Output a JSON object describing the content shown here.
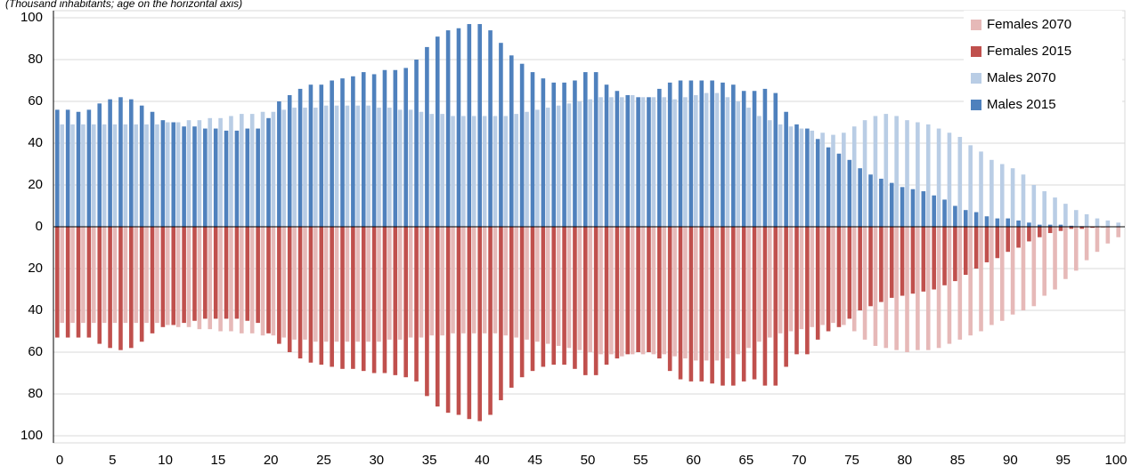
{
  "chart_data": {
    "type": "bar",
    "title": "(Thousand inhabitants; age on the horizontal axis)",
    "x": [
      0,
      1,
      2,
      3,
      4,
      5,
      6,
      7,
      8,
      9,
      10,
      11,
      12,
      13,
      14,
      15,
      16,
      17,
      18,
      19,
      20,
      21,
      22,
      23,
      24,
      25,
      26,
      27,
      28,
      29,
      30,
      31,
      32,
      33,
      34,
      35,
      36,
      37,
      38,
      39,
      40,
      41,
      42,
      43,
      44,
      45,
      46,
      47,
      48,
      49,
      50,
      51,
      52,
      53,
      54,
      55,
      56,
      57,
      58,
      59,
      60,
      61,
      62,
      63,
      64,
      65,
      66,
      67,
      68,
      69,
      70,
      71,
      72,
      73,
      74,
      75,
      76,
      77,
      78,
      79,
      80,
      81,
      82,
      83,
      84,
      85,
      86,
      87,
      88,
      89,
      90,
      91,
      92,
      93,
      94,
      95,
      96,
      97,
      98,
      99,
      100
    ],
    "series": [
      {
        "name": "Females 2070",
        "color": "#e6b9b8",
        "values": [
          -46,
          -46,
          -46,
          -46,
          -46,
          -46,
          -46,
          -46,
          -46,
          -46,
          -47,
          -48,
          -48,
          -49,
          -49,
          -50,
          -50,
          -51,
          -51,
          -52,
          -52,
          -53,
          -54,
          -54,
          -55,
          -55,
          -55,
          -55,
          -55,
          -55,
          -55,
          -54,
          -54,
          -53,
          -53,
          -52,
          -52,
          -51,
          -51,
          -51,
          -51,
          -51,
          -52,
          -53,
          -54,
          -55,
          -56,
          -57,
          -58,
          -59,
          -60,
          -61,
          -61,
          -62,
          -61,
          -61,
          -61,
          -61,
          -62,
          -63,
          -64,
          -64,
          -64,
          -63,
          -61,
          -58,
          -55,
          -53,
          -51,
          -50,
          -49,
          -48,
          -47,
          -46,
          -47,
          -50,
          -54,
          -57,
          -58,
          -59,
          -60,
          -59,
          -59,
          -58,
          -56,
          -54,
          -52,
          -50,
          -47,
          -45,
          -42,
          -40,
          -38,
          -33,
          -30,
          -25,
          -21,
          -16,
          -12,
          -8,
          -5
        ]
      },
      {
        "name": "Females 2015",
        "color": "#c0504d",
        "values": [
          -53,
          -53,
          -53,
          -53,
          -56,
          -58,
          -59,
          -58,
          -55,
          -51,
          -48,
          -47,
          -46,
          -45,
          -44,
          -44,
          -44,
          -44,
          -45,
          -46,
          -51,
          -56,
          -60,
          -63,
          -65,
          -66,
          -67,
          -68,
          -68,
          -69,
          -70,
          -70,
          -71,
          -72,
          -74,
          -81,
          -86,
          -89,
          -90,
          -92,
          -93,
          -90,
          -83,
          -77,
          -72,
          -69,
          -67,
          -66,
          -66,
          -68,
          -71,
          -71,
          -66,
          -63,
          -61,
          -60,
          -60,
          -63,
          -69,
          -73,
          -74,
          -74,
          -75,
          -76,
          -76,
          -74,
          -73,
          -76,
          -76,
          -67,
          -61,
          -61,
          -54,
          -50,
          -48,
          -44,
          -40,
          -38,
          -36,
          -34,
          -33,
          -32,
          -31,
          -30,
          -28,
          -26,
          -23,
          -20,
          -17,
          -15,
          -12,
          -10,
          -7,
          -5,
          -3,
          -2,
          -1,
          -1,
          -0.5,
          -0.3,
          -0.2
        ]
      },
      {
        "name": "Males 2070",
        "color": "#b9cde5",
        "values": [
          49,
          49,
          49,
          49,
          49,
          49,
          49,
          49,
          49,
          49,
          50,
          50,
          51,
          51,
          52,
          52,
          53,
          54,
          54,
          55,
          55,
          56,
          57,
          57,
          57,
          58,
          58,
          58,
          58,
          58,
          57,
          57,
          56,
          56,
          55,
          54,
          54,
          53,
          53,
          53,
          53,
          53,
          53,
          54,
          55,
          56,
          57,
          58,
          59,
          60,
          61,
          62,
          62,
          62,
          63,
          62,
          62,
          62,
          61,
          62,
          63,
          64,
          64,
          62,
          60,
          57,
          53,
          51,
          49,
          48,
          47,
          46,
          45,
          44,
          45,
          48,
          51,
          53,
          54,
          53,
          51,
          50,
          49,
          47,
          45,
          43,
          39,
          36,
          32,
          30,
          28,
          25,
          20,
          17,
          14,
          11,
          8,
          6,
          4,
          3,
          2
        ]
      },
      {
        "name": "Males 2015",
        "color": "#4f81bd",
        "values": [
          56,
          56,
          55,
          56,
          59,
          61,
          62,
          61,
          58,
          55,
          51,
          50,
          48,
          48,
          47,
          47,
          46,
          46,
          47,
          47,
          52,
          60,
          63,
          66,
          68,
          68,
          70,
          71,
          72,
          74,
          73,
          75,
          75,
          76,
          80,
          86,
          91,
          94,
          95,
          97,
          97,
          94,
          88,
          82,
          78,
          74,
          71,
          69,
          69,
          70,
          74,
          74,
          68,
          65,
          63,
          62,
          62,
          66,
          69,
          70,
          70,
          70,
          70,
          69,
          68,
          65,
          65,
          66,
          64,
          55,
          49,
          47,
          42,
          38,
          35,
          32,
          28,
          25,
          23,
          21,
          19,
          18,
          17,
          15,
          13,
          10,
          8,
          7,
          5,
          4,
          4,
          3,
          2,
          1,
          1,
          1,
          0.5,
          0.3,
          0.2,
          0.1,
          0.1
        ]
      }
    ],
    "xlim": [
      0,
      100
    ],
    "xticks": [
      0,
      5,
      10,
      15,
      20,
      25,
      30,
      35,
      40,
      45,
      50,
      55,
      60,
      65,
      70,
      75,
      80,
      85,
      90,
      95,
      100
    ],
    "ylim": [
      -100,
      100
    ],
    "yticks": [
      {
        "value": -100,
        "label": "100"
      },
      {
        "value": -80,
        "label": "80"
      },
      {
        "value": -60,
        "label": "60"
      },
      {
        "value": -40,
        "label": "40"
      },
      {
        "value": -20,
        "label": "20"
      },
      0,
      20,
      40,
      60,
      80,
      100
    ],
    "grid": true,
    "legend": "top-right"
  }
}
